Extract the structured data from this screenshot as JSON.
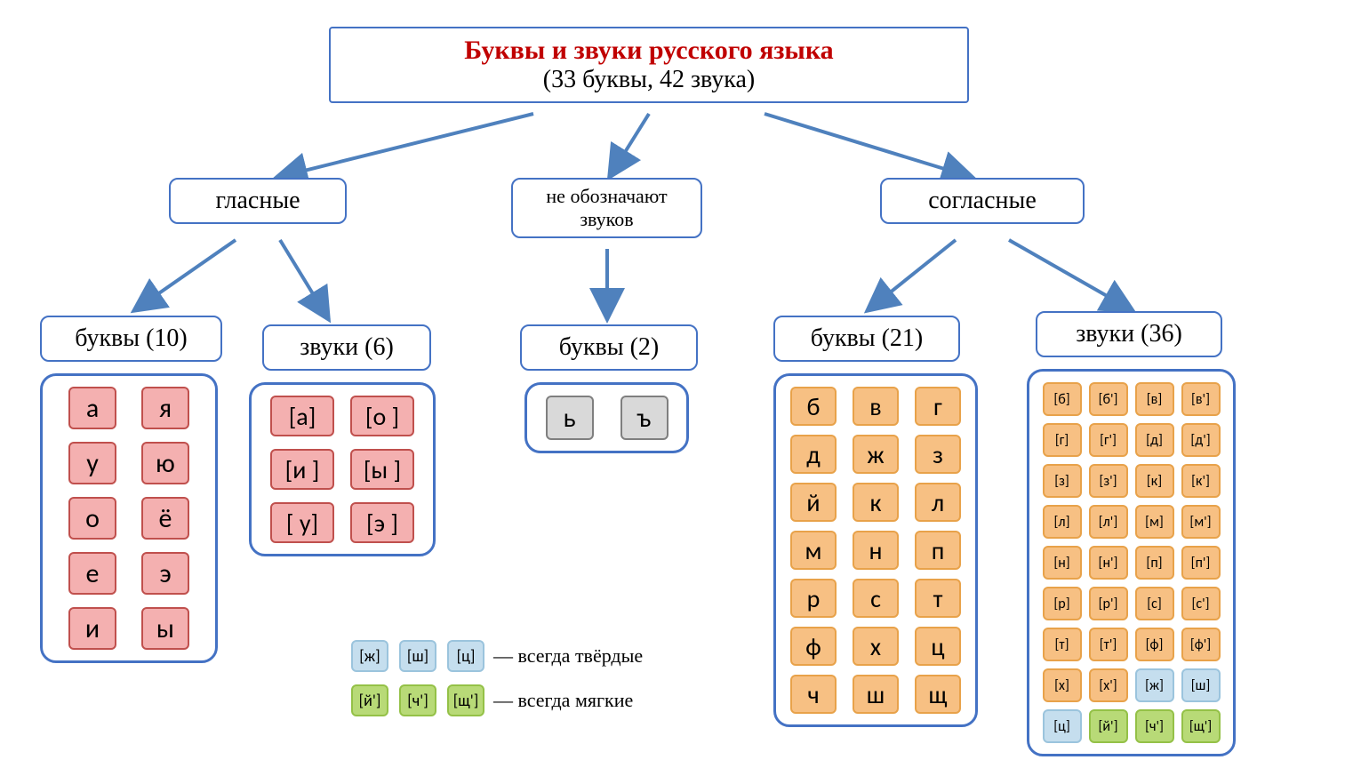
{
  "colors": {
    "border_blue": "#4472c4",
    "title_red": "#c00000",
    "pink_fill": "#f4b0b0",
    "pink_border": "#c0504d",
    "gray_fill": "#d9d9d9",
    "gray_border": "#7f7f7f",
    "orange_fill": "#f7c083",
    "orange_border": "#e8a24a",
    "blue_fill": "#c5deee",
    "blue_border": "#9bc4dd",
    "green_fill": "#b8da77",
    "green_border": "#94c147",
    "arrow": "#4f81bd"
  },
  "root": {
    "title": "Буквы и звуки русского языка",
    "subtitle": "(33 буквы, 42 звука)"
  },
  "branches": {
    "vowels": {
      "label": "гласные"
    },
    "nosound": {
      "line1": "не обозначают",
      "line2": "звуков"
    },
    "consonants": {
      "label": "согласные"
    }
  },
  "vowel_letters": {
    "header": "буквы (10)",
    "cells": [
      "а",
      "я",
      "у",
      "ю",
      "о",
      "ё",
      "е",
      "э",
      "и",
      "ы"
    ]
  },
  "vowel_sounds": {
    "header": "звуки (6)",
    "cells": [
      "[а]",
      "[о ]",
      "[и ]",
      "[ы ]",
      "[ у]",
      "[э ]"
    ]
  },
  "nosound_letters": {
    "header": "буквы (2)",
    "cells": [
      "ь",
      "ъ"
    ]
  },
  "consonant_letters": {
    "header": "буквы (21)",
    "cells": [
      "б",
      "в",
      "г",
      "д",
      "ж",
      "з",
      "й",
      "к",
      "л",
      "м",
      "н",
      "п",
      "р",
      "с",
      "т",
      "ф",
      "х",
      "ц",
      "ч",
      "ш",
      "щ"
    ]
  },
  "consonant_sounds": {
    "header": "звуки (36)",
    "cells": [
      {
        "t": "[б]",
        "c": "o"
      },
      {
        "t": "[б']",
        "c": "o"
      },
      {
        "t": "[в]",
        "c": "o"
      },
      {
        "t": "[в']",
        "c": "o"
      },
      {
        "t": "[г]",
        "c": "o"
      },
      {
        "t": "[г']",
        "c": "o"
      },
      {
        "t": "[д]",
        "c": "o"
      },
      {
        "t": "[д']",
        "c": "o"
      },
      {
        "t": "[з]",
        "c": "o"
      },
      {
        "t": "[з']",
        "c": "o"
      },
      {
        "t": "[к]",
        "c": "o"
      },
      {
        "t": "[к']",
        "c": "o"
      },
      {
        "t": "[л]",
        "c": "o"
      },
      {
        "t": "[л']",
        "c": "o"
      },
      {
        "t": "[м]",
        "c": "o"
      },
      {
        "t": "[м']",
        "c": "o"
      },
      {
        "t": "[н]",
        "c": "o"
      },
      {
        "t": "[н']",
        "c": "o"
      },
      {
        "t": "[п]",
        "c": "o"
      },
      {
        "t": "[п']",
        "c": "o"
      },
      {
        "t": "[р]",
        "c": "o"
      },
      {
        "t": "[р']",
        "c": "o"
      },
      {
        "t": "[с]",
        "c": "o"
      },
      {
        "t": "[с']",
        "c": "o"
      },
      {
        "t": "[т]",
        "c": "o"
      },
      {
        "t": "[т']",
        "c": "o"
      },
      {
        "t": "[ф]",
        "c": "o"
      },
      {
        "t": "[ф']",
        "c": "o"
      },
      {
        "t": "[х]",
        "c": "o"
      },
      {
        "t": "[х']",
        "c": "o"
      },
      {
        "t": "[ж]",
        "c": "b"
      },
      {
        "t": "[ш]",
        "c": "b"
      },
      {
        "t": "[ц]",
        "c": "b"
      },
      {
        "t": "[й']",
        "c": "g"
      },
      {
        "t": "[ч']",
        "c": "g"
      },
      {
        "t": "[щ']",
        "c": "g"
      }
    ]
  },
  "legend": {
    "hard": {
      "cells": [
        "[ж]",
        "[ш]",
        "[ц]"
      ],
      "text": "— всегда твёрдые"
    },
    "soft": {
      "cells": [
        "[й']",
        "[ч']",
        "[щ']"
      ],
      "text": "— всегда мягкие"
    }
  }
}
